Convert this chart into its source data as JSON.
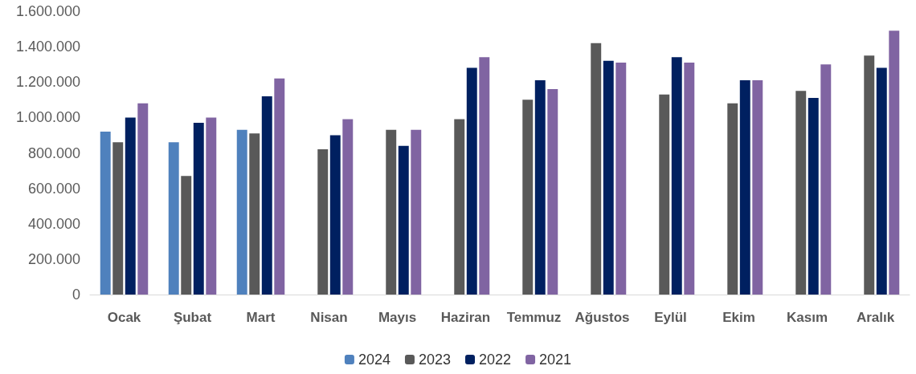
{
  "chart_data": {
    "type": "bar",
    "categories": [
      "Ocak",
      "Şubat",
      "Mart",
      "Nisan",
      "Mayıs",
      "Haziran",
      "Temmuz",
      "Ağustos",
      "Eylül",
      "Ekim",
      "Kasım",
      "Aralık"
    ],
    "series": [
      {
        "name": "2024",
        "color": "#4f81bd",
        "values": [
          920000,
          860000,
          930000,
          null,
          null,
          null,
          null,
          null,
          null,
          null,
          null,
          null
        ]
      },
      {
        "name": "2023",
        "color": "#595959",
        "values": [
          860000,
          670000,
          910000,
          820000,
          930000,
          990000,
          1100000,
          1420000,
          1130000,
          1080000,
          1150000,
          1350000
        ]
      },
      {
        "name": "2022",
        "color": "#002060",
        "values": [
          1000000,
          970000,
          1120000,
          900000,
          840000,
          1280000,
          1210000,
          1320000,
          1340000,
          1210000,
          1110000,
          1280000
        ]
      },
      {
        "name": "2021",
        "color": "#8064a2",
        "values": [
          1080000,
          1000000,
          1220000,
          990000,
          930000,
          1340000,
          1160000,
          1310000,
          1310000,
          1210000,
          1300000,
          1490000
        ]
      }
    ],
    "ylim": [
      0,
      1600000
    ],
    "yticks": [
      0,
      {
        "value": 200000,
        "label": "200.000"
      },
      {
        "value": 400000,
        "label": "400.000"
      },
      {
        "value": 600000,
        "label": "600.000"
      },
      {
        "value": 800000,
        "label": "800.000"
      },
      {
        "value": 1000000,
        "label": "1.000.000"
      },
      {
        "value": 1200000,
        "label": "1.200.000"
      },
      {
        "value": 1400000,
        "label": "1.400.000"
      },
      {
        "value": 1600000,
        "label": "1.600.000"
      }
    ],
    "grid": false,
    "legend": "bottom"
  }
}
